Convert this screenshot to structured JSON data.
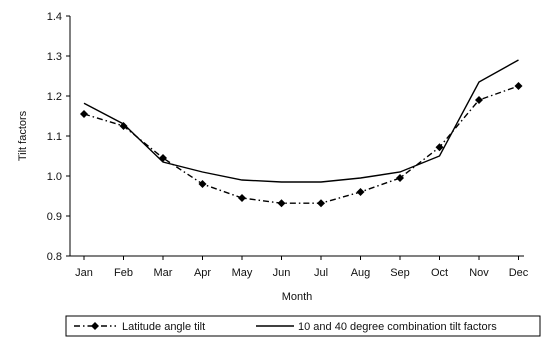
{
  "chart_data": {
    "type": "line",
    "categories": [
      "Jan",
      "Feb",
      "Mar",
      "Apr",
      "May",
      "Jun",
      "Jul",
      "Aug",
      "Sep",
      "Oct",
      "Nov",
      "Dec"
    ],
    "series": [
      {
        "name": "Latitude angle tilt",
        "values": [
          1.155,
          1.125,
          1.045,
          0.98,
          0.945,
          0.932,
          0.932,
          0.96,
          0.995,
          1.072,
          1.19,
          1.225
        ],
        "style": "dash-dot with diamond markers",
        "color": "#000000"
      },
      {
        "name": "10 and 40 degree combination tilt factors",
        "values": [
          1.182,
          1.13,
          1.035,
          1.01,
          0.99,
          0.985,
          0.985,
          0.995,
          1.01,
          1.05,
          1.235,
          1.29
        ],
        "style": "solid",
        "color": "#000000"
      }
    ],
    "xlabel": "Month",
    "ylabel": "Tilt factors",
    "ylim": [
      0.8,
      1.4
    ],
    "yticks": [
      "0.8",
      "0.9",
      "1.0",
      "1.1",
      "1.2",
      "1.3",
      "1.4"
    ],
    "ytick_values": [
      0.8,
      0.9,
      1.0,
      1.1,
      1.2,
      1.3,
      1.4
    ],
    "grid": false,
    "legend_position": "bottom"
  }
}
